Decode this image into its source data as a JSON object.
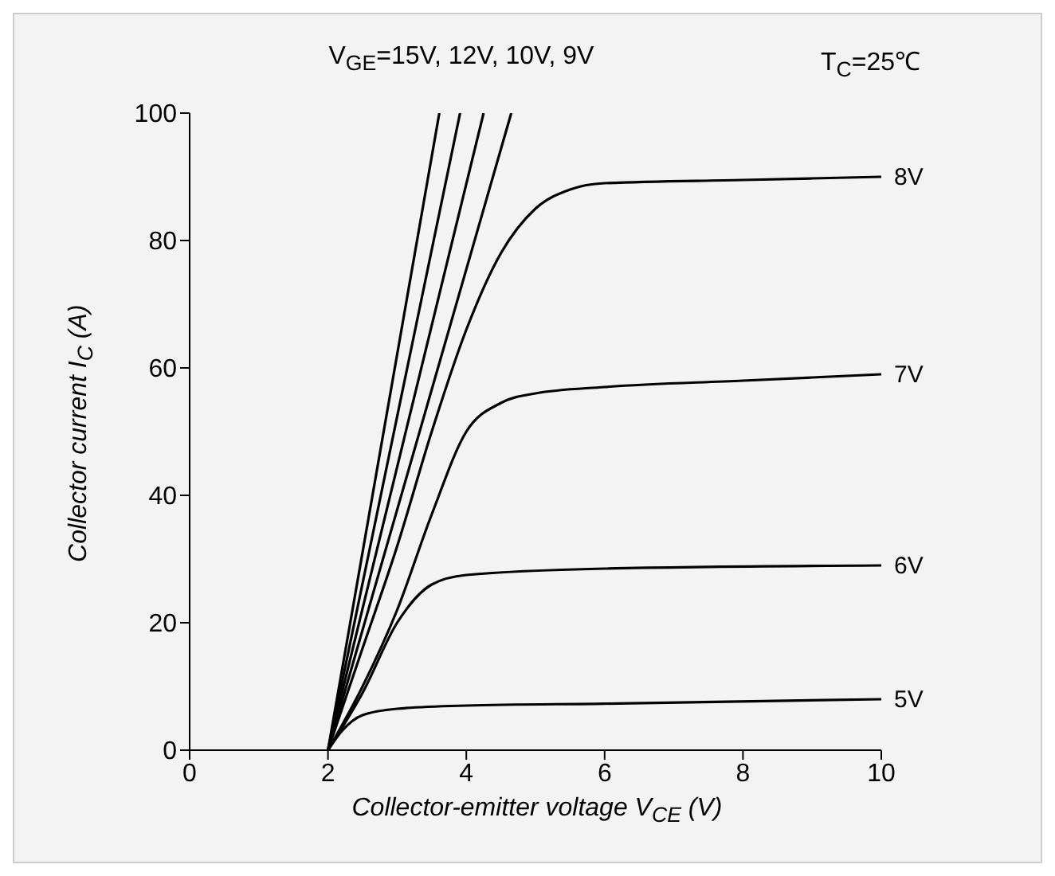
{
  "chart_data": {
    "type": "line",
    "xlabel": "Collector-emitter voltage V$_{CE}$ (V)",
    "ylabel": "Collector current I$_{C}$ (A)",
    "annotations": [
      "V$_{GE}$=15V, 12V, 10V, 9V",
      "T$_{C}$=25℃"
    ],
    "xlim": [
      0,
      10
    ],
    "ylim": [
      0,
      100
    ],
    "xticks": [
      0,
      2,
      4,
      6,
      8,
      10
    ],
    "yticks": [
      0,
      20,
      40,
      60,
      80,
      100
    ],
    "grid": false,
    "legend": false,
    "marker": "none",
    "line_style": "solid",
    "series": [
      {
        "color": "#000000",
        "x": [
          2,
          3.61
        ],
        "values": [
          0,
          100
        ]
      },
      {
        "color": "#000000",
        "x": [
          2,
          3.91
        ],
        "values": [
          0,
          100
        ]
      },
      {
        "color": "#000000",
        "x": [
          2,
          4.25
        ],
        "values": [
          0,
          100
        ]
      },
      {
        "color": "#000000",
        "x": [
          2,
          4.65
        ],
        "values": [
          0,
          100
        ]
      },
      {
        "name": "8V",
        "color": "#000000",
        "x": [
          2,
          2.5,
          3,
          3.5,
          4,
          4.5,
          5,
          5.5,
          6,
          8,
          10
        ],
        "values": [
          0,
          16,
          32,
          50,
          66,
          78,
          85,
          88,
          89,
          89.5,
          90
        ]
      },
      {
        "name": "7V",
        "color": "#000000",
        "x": [
          2,
          2.5,
          3,
          3.5,
          4,
          4.5,
          5,
          6,
          8,
          10
        ],
        "values": [
          0,
          10,
          22,
          37,
          50,
          54.5,
          56,
          57,
          58,
          59
        ]
      },
      {
        "name": "6V",
        "color": "#000000",
        "x": [
          2,
          2.5,
          3,
          3.5,
          4,
          6,
          10
        ],
        "values": [
          0,
          9,
          20,
          26,
          27.5,
          28.5,
          29
        ]
      },
      {
        "name": "5V",
        "color": "#000000",
        "x": [
          2,
          2.2,
          2.5,
          3,
          4,
          6,
          10
        ],
        "values": [
          0,
          3,
          5.5,
          6.5,
          7,
          7.3,
          8
        ]
      }
    ]
  }
}
